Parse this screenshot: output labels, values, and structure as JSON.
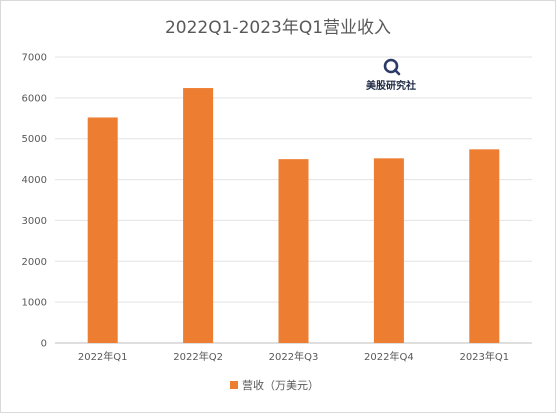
{
  "chart_data": {
    "type": "bar",
    "title": "2022Q1-2023年Q1营业收入",
    "categories": [
      "2022年Q1",
      "2022年Q2",
      "2022年Q3",
      "2022年Q4",
      "2023年Q1"
    ],
    "series": [
      {
        "name": "营收（万美元）",
        "values": [
          5520,
          6240,
          4500,
          4520,
          4740
        ],
        "color": "#ED7D31"
      }
    ],
    "ylim": [
      0,
      7000
    ],
    "yticks": [
      0,
      1000,
      2000,
      3000,
      4000,
      5000,
      6000,
      7000
    ],
    "grid": true,
    "legend": "bottom"
  },
  "watermark": {
    "text": "美股研究社",
    "icon": "magnifier-logo-icon"
  }
}
